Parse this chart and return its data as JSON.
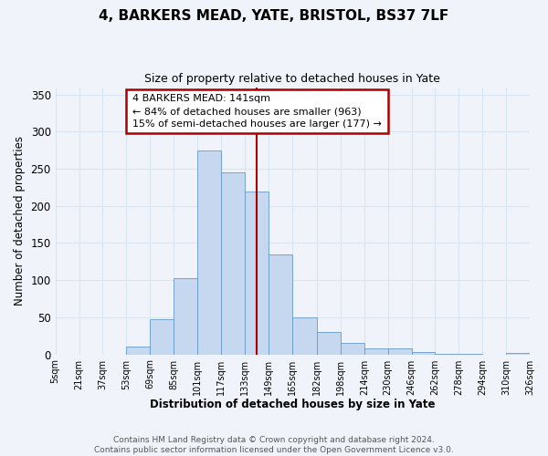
{
  "title": "4, BARKERS MEAD, YATE, BRISTOL, BS37 7LF",
  "subtitle": "Size of property relative to detached houses in Yate",
  "xlabel": "Distribution of detached houses by size in Yate",
  "ylabel": "Number of detached properties",
  "bin_edges": [
    5,
    21,
    37,
    53,
    69,
    85,
    101,
    117,
    133,
    149,
    165,
    182,
    198,
    214,
    230,
    246,
    262,
    278,
    294,
    310,
    326
  ],
  "bin_counts": [
    0,
    0,
    0,
    10,
    48,
    103,
    275,
    245,
    220,
    135,
    50,
    30,
    15,
    8,
    8,
    3,
    1,
    1,
    0,
    2
  ],
  "tick_labels": [
    "5sqm",
    "21sqm",
    "37sqm",
    "53sqm",
    "69sqm",
    "85sqm",
    "101sqm",
    "117sqm",
    "133sqm",
    "149sqm",
    "165sqm",
    "182sqm",
    "198sqm",
    "214sqm",
    "230sqm",
    "246sqm",
    "262sqm",
    "278sqm",
    "294sqm",
    "310sqm",
    "326sqm"
  ],
  "bar_color": "#c5d8ef",
  "bar_edge_color": "#6699cc",
  "property_line_x": 141,
  "property_line_color": "#aa0000",
  "annotation_line1": "4 BARKERS MEAD: 141sqm",
  "annotation_line2": "← 84% of detached houses are smaller (963)",
  "annotation_line3": "15% of semi-detached houses are larger (177) →",
  "ylim": [
    0,
    360
  ],
  "yticks": [
    0,
    50,
    100,
    150,
    200,
    250,
    300,
    350
  ],
  "footer_line1": "Contains HM Land Registry data © Crown copyright and database right 2024.",
  "footer_line2": "Contains public sector information licensed under the Open Government Licence v3.0.",
  "background_color": "#f0f4fa",
  "grid_color": "#d8e4f0",
  "title_fontsize": 11,
  "subtitle_fontsize": 9,
  "axis_label_fontsize": 8.5,
  "tick_fontsize": 7,
  "footer_fontsize": 6.5,
  "ann_fontsize": 8
}
